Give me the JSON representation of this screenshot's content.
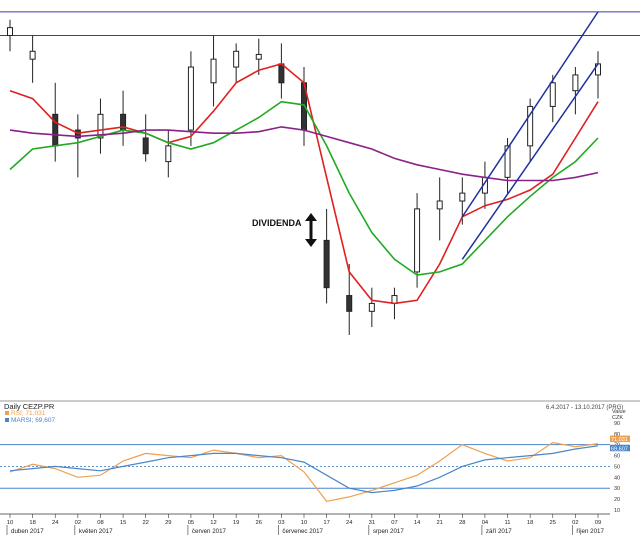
{
  "chart_data": [
    {
      "type": "candlestick",
      "title": "",
      "ylim": [
        460,
        710
      ],
      "grid": false,
      "x": [
        "2017-04-10",
        "2017-04-19",
        "2017-04-26",
        "2017-05-02",
        "2017-05-09",
        "2017-05-16",
        "2017-05-23",
        "2017-05-29",
        "2017-06-05",
        "2017-06-12",
        "2017-06-19",
        "2017-06-26",
        "2017-07-03",
        "2017-07-10",
        "2017-07-17",
        "2017-07-24",
        "2017-07-31",
        "2017-08-07",
        "2017-08-14",
        "2017-08-21",
        "2017-08-28",
        "2017-09-04",
        "2017-09-11",
        "2017-09-18",
        "2017-09-25",
        "2017-10-02",
        "2017-10-09"
      ],
      "x_tick_labels": [
        "10",
        "18",
        "24",
        "02",
        "08",
        "15",
        "22",
        "29",
        "05",
        "12",
        "19",
        "26",
        "03",
        "10",
        "17",
        "24",
        "31",
        "07",
        "14",
        "21",
        "28",
        "04",
        "11",
        "18",
        "25",
        "02",
        "09"
      ],
      "x_month_labels": [
        "duben 2017",
        "květen 2017",
        "červen 2017",
        "červenec 2017",
        "srpen 2017",
        "září 2017",
        "říjen 2017"
      ],
      "y_tick_labels": [],
      "horizontal_lines": [
        705,
        690
      ],
      "annotation": {
        "text": "DIVIDENDA",
        "arrow": "up-down"
      },
      "ohlc": [
        [
          690,
          700,
          680,
          695
        ],
        [
          675,
          690,
          660,
          680
        ],
        [
          640,
          660,
          610,
          620
        ],
        [
          630,
          640,
          600,
          625
        ],
        [
          625,
          650,
          615,
          640
        ],
        [
          640,
          655,
          620,
          630
        ],
        [
          625,
          640,
          610,
          615
        ],
        [
          610,
          630,
          600,
          620
        ],
        [
          630,
          680,
          620,
          670
        ],
        [
          660,
          690,
          645,
          675
        ],
        [
          670,
          685,
          660,
          680
        ],
        [
          675,
          688,
          665,
          678
        ],
        [
          672,
          685,
          650,
          660
        ],
        [
          660,
          670,
          620,
          630
        ],
        [
          560,
          580,
          520,
          530
        ],
        [
          525,
          545,
          500,
          515
        ],
        [
          515,
          530,
          505,
          520
        ],
        [
          520,
          530,
          510,
          525
        ],
        [
          540,
          590,
          530,
          580
        ],
        [
          580,
          600,
          560,
          585
        ],
        [
          585,
          600,
          570,
          590
        ],
        [
          590,
          610,
          580,
          600
        ],
        [
          600,
          625,
          590,
          620
        ],
        [
          620,
          650,
          610,
          645
        ],
        [
          645,
          665,
          635,
          660
        ],
        [
          655,
          670,
          640,
          665
        ],
        [
          665,
          680,
          650,
          672
        ]
      ],
      "series": [
        {
          "name": "",
          "color": "#e02020",
          "values": [
            655,
            650,
            635,
            628,
            630,
            632,
            628,
            622,
            626,
            642,
            660,
            668,
            672,
            660,
            600,
            540,
            522,
            520,
            522,
            545,
            575,
            582,
            586,
            592,
            602,
            625,
            648
          ]
        },
        {
          "name": "",
          "color": "#22aa22",
          "values": [
            605,
            618,
            620,
            622,
            626,
            630,
            628,
            622,
            618,
            622,
            630,
            638,
            648,
            646,
            620,
            590,
            565,
            548,
            538,
            540,
            545,
            560,
            575,
            588,
            600,
            610,
            625
          ]
        },
        {
          "name": "",
          "color": "#882288",
          "values": [
            630,
            628,
            627,
            626,
            627,
            628,
            630,
            630,
            629,
            628,
            628,
            629,
            632,
            630,
            626,
            622,
            618,
            612,
            608,
            605,
            602,
            600,
            598,
            598,
            598,
            600,
            603
          ]
        }
      ],
      "trend_channel": [
        {
          "name": "",
          "color": "#2030a0",
          "from": {
            "x": "2017-08-28",
            "y": 575
          },
          "to": {
            "x": "2017-10-09",
            "y": 705
          }
        },
        {
          "name": "",
          "color": "#2030a0",
          "from": {
            "x": "2017-08-28",
            "y": 548
          },
          "to": {
            "x": "2017-10-09",
            "y": 672
          }
        }
      ]
    },
    {
      "type": "line",
      "title": "Daily CEZP.PR",
      "date_range": "6.4.2017 - 13.10.2017 (PRG)",
      "axis_header": [
        "Value",
        "CZK"
      ],
      "ylim": [
        10,
        100
      ],
      "y_ticks": [
        10,
        20,
        30,
        40,
        50,
        60,
        70,
        80,
        90
      ],
      "reference_lines": [
        70,
        50,
        30
      ],
      "grid": false,
      "legend": [
        {
          "name": "RSI; 71,031",
          "color": "#f0a050"
        },
        {
          "name": "MARSI; 69,607",
          "color": "#4a86c8"
        }
      ],
      "last_value_badges": [
        {
          "text": "71,031",
          "color": "#f0a050"
        },
        {
          "text": "69,607",
          "color": "#4a86c8"
        }
      ],
      "series": [
        {
          "name": "RSI",
          "color": "#f0a050",
          "values": [
            45,
            52,
            48,
            40,
            42,
            55,
            62,
            60,
            58,
            65,
            62,
            58,
            60,
            45,
            18,
            22,
            28,
            35,
            42,
            55,
            70,
            62,
            55,
            58,
            72,
            68,
            71
          ]
        },
        {
          "name": "MARSI",
          "color": "#4a86c8",
          "values": [
            46,
            48,
            50,
            48,
            46,
            50,
            54,
            58,
            60,
            62,
            62,
            60,
            58,
            54,
            42,
            30,
            26,
            28,
            32,
            40,
            50,
            56,
            58,
            60,
            62,
            66,
            69
          ]
        }
      ]
    }
  ]
}
